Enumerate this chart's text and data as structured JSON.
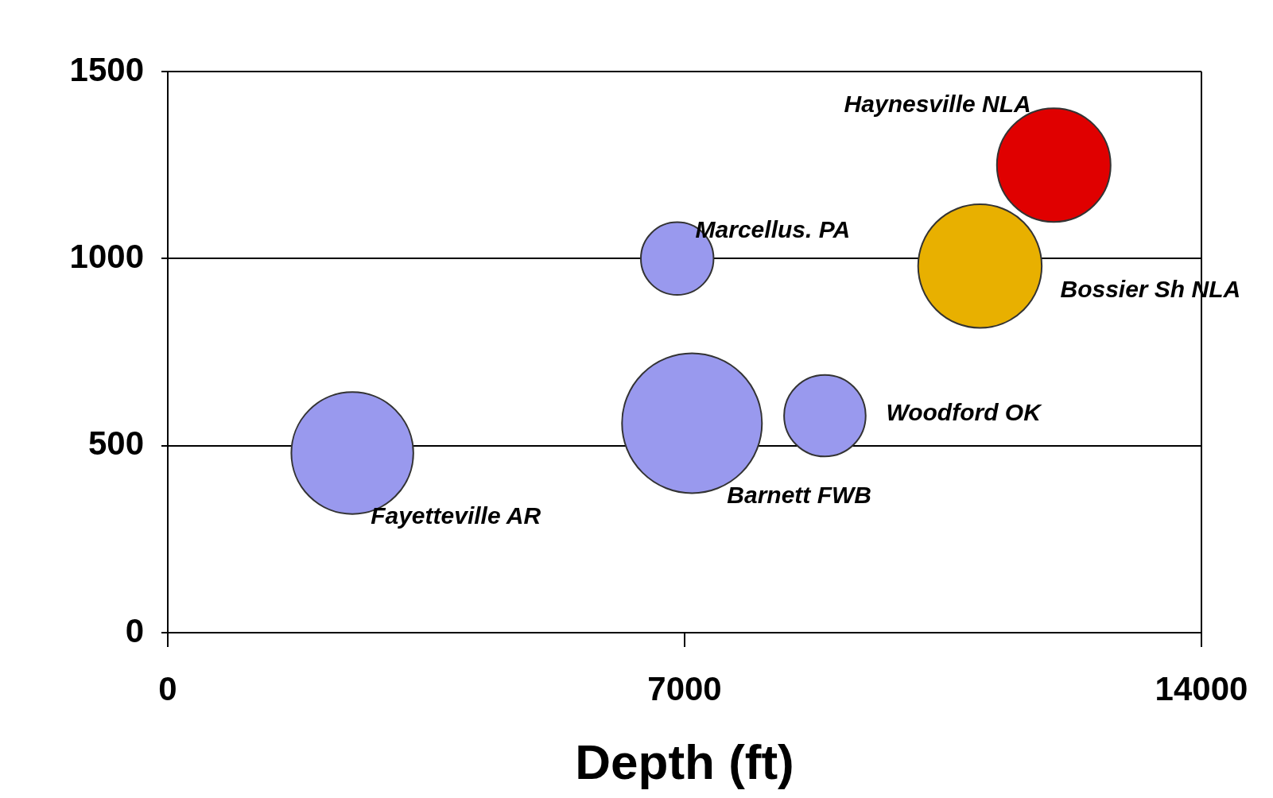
{
  "chart_data": {
    "type": "bubble",
    "xlabel": "Depth (ft)",
    "xlim": [
      0,
      14000
    ],
    "xticks": [
      0,
      7000,
      14000
    ],
    "ylim": [
      0,
      1500
    ],
    "yticks": [
      0,
      500,
      1000,
      1500
    ],
    "grid": "y",
    "legend": false,
    "series": [
      {
        "name": "Fayetteville AR",
        "color": "#9999ee",
        "x": [
          2500
        ],
        "values": [
          480
        ],
        "sizes": [
          0.76
        ]
      },
      {
        "name": "Marcellus. PA",
        "color": "#9999ee",
        "x": [
          6900
        ],
        "values": [
          1000
        ],
        "sizes": [
          0.27
        ]
      },
      {
        "name": "Barnett FWB",
        "color": "#9999ee",
        "x": [
          7100
        ],
        "values": [
          560
        ],
        "sizes": [
          1
        ]
      },
      {
        "name": "Woodford OK",
        "color": "#9999ee",
        "x": [
          8900
        ],
        "values": [
          580
        ],
        "sizes": [
          0.34
        ]
      },
      {
        "name": "Bossier Sh NLA",
        "color": "#e8b000",
        "x": [
          11000
        ],
        "values": [
          980
        ],
        "sizes": [
          0.78
        ]
      },
      {
        "name": "Haynesville NLA",
        "color": "#e00000",
        "x": [
          12000
        ],
        "values": [
          1250
        ],
        "sizes": [
          0.66
        ]
      }
    ]
  }
}
